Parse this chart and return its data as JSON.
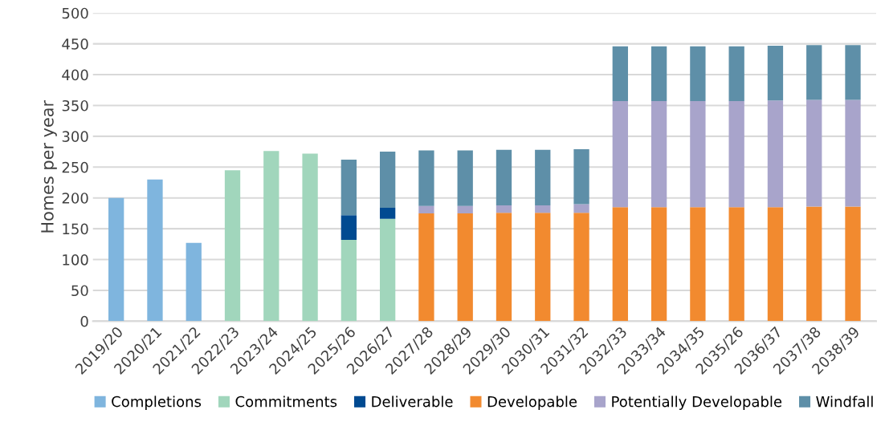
{
  "chart_data": {
    "type": "bar",
    "stacked": true,
    "ylabel": "Homes per year",
    "categories": [
      "2019/20",
      "2020/21",
      "2021/22",
      "2022/23",
      "2023/24",
      "2024/25",
      "2025/26",
      "2026/27",
      "2027/28",
      "2028/29",
      "2029/30",
      "2030/31",
      "2031/32",
      "2032/33",
      "2033/34",
      "2034/35",
      "2035/26",
      "2036/37",
      "2037/38",
      "2038/39"
    ],
    "series": [
      {
        "name": "Completions",
        "color": "#7fb5de",
        "values": [
          200,
          230,
          127,
          null,
          null,
          null,
          null,
          null,
          null,
          null,
          null,
          null,
          null,
          null,
          null,
          null,
          null,
          null,
          null,
          null
        ]
      },
      {
        "name": "Commitments",
        "color": "#a1d6bc",
        "values": [
          null,
          null,
          null,
          245,
          276,
          272,
          132,
          166,
          null,
          null,
          null,
          null,
          null,
          null,
          null,
          null,
          null,
          null,
          null,
          null
        ]
      },
      {
        "name": "Deliverable",
        "color": "#004a91",
        "values": [
          null,
          null,
          null,
          null,
          null,
          null,
          40,
          18,
          null,
          null,
          null,
          null,
          null,
          null,
          null,
          null,
          null,
          null,
          null,
          null
        ]
      },
      {
        "name": "Developable",
        "color": "#f28a2f",
        "values": [
          null,
          null,
          null,
          null,
          null,
          null,
          null,
          null,
          175,
          175,
          176,
          176,
          176,
          185,
          185,
          185,
          185,
          185,
          186,
          186
        ]
      },
      {
        "name": "Potentially Developable",
        "color": "#a8a4cb",
        "values": [
          null,
          null,
          null,
          null,
          null,
          null,
          null,
          null,
          12,
          12,
          12,
          12,
          14,
          172,
          172,
          172,
          172,
          173,
          173,
          173
        ]
      },
      {
        "name": "Windfall",
        "color": "#5e8fa8",
        "values": [
          null,
          null,
          null,
          null,
          null,
          null,
          90,
          91,
          90,
          90,
          90,
          90,
          89,
          89,
          89,
          89,
          89,
          89,
          89,
          89
        ]
      }
    ],
    "ylim": [
      0,
      500
    ],
    "yticks": [
      0,
      50,
      100,
      150,
      200,
      250,
      300,
      350,
      400,
      450,
      500
    ],
    "grid": "y",
    "legend": "bottom"
  }
}
